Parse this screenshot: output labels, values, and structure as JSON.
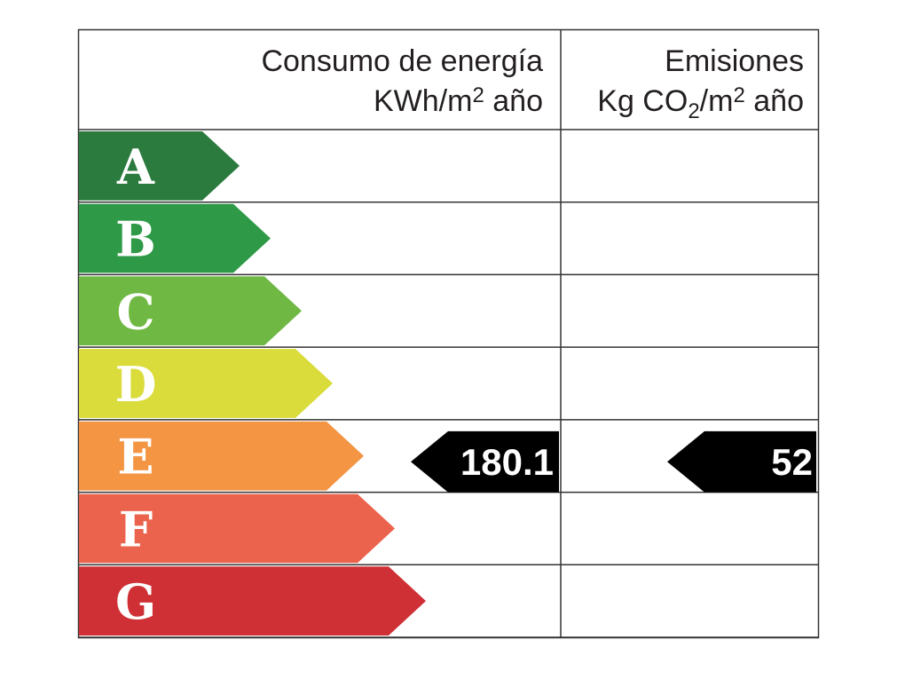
{
  "header": {
    "consumption": {
      "line1": "Consumo de energía",
      "line2": [
        "KWh/m",
        "2",
        " año"
      ]
    },
    "emissions": {
      "line1": "Emisiones",
      "line2": [
        "Kg CO",
        "2",
        "/m",
        "2",
        " año"
      ]
    }
  },
  "grades": [
    "A",
    "B",
    "C",
    "D",
    "E",
    "F",
    "G"
  ],
  "grade_colors": [
    "#2b7a3e",
    "#2e9a47",
    "#6fb843",
    "#d9dc3a",
    "#f39543",
    "#eb634c",
    "#cf3035"
  ],
  "consumption": {
    "rating": "E",
    "value": 180.1
  },
  "emissions": {
    "rating": "E",
    "value": 52
  }
}
